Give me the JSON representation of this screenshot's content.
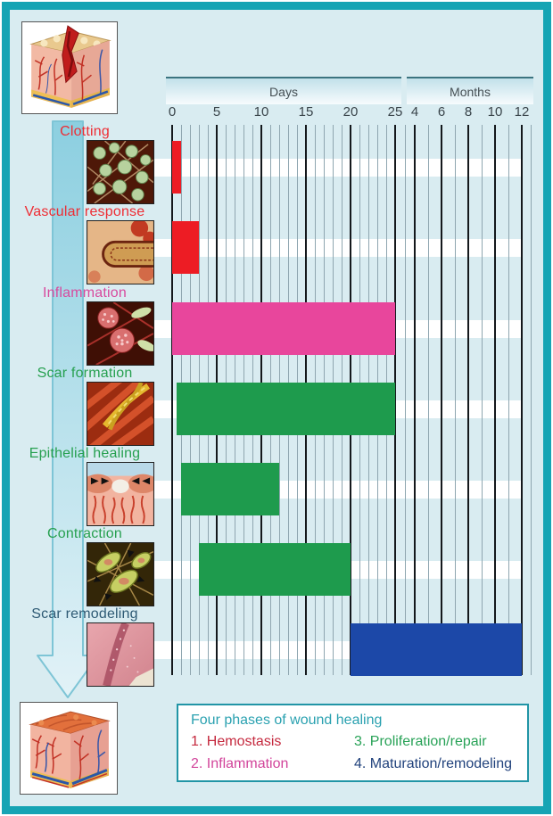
{
  "figure": {
    "background": "#d9ecf1",
    "frame_color": "#16a4b4",
    "stripe_color": "#ffffff",
    "grid_major_color": "#14181c",
    "grid_minor_color": "#8fa6b0"
  },
  "axis": {
    "days_label": "Days",
    "months_label": "Months",
    "day_ticks": [
      0,
      5,
      10,
      15,
      20,
      25
    ],
    "month_ticks": [
      4,
      6,
      8,
      10,
      12
    ]
  },
  "rows": [
    {
      "label": "Clotting",
      "color": "#ee2d34"
    },
    {
      "label": "Vascular response",
      "color": "#ee2d34"
    },
    {
      "label": "Inflammation",
      "color": "#d84a9e"
    },
    {
      "label": "Scar formation",
      "color": "#27a050"
    },
    {
      "label": "Epithelial healing",
      "color": "#27a050"
    },
    {
      "label": "Contraction",
      "color": "#27a050"
    },
    {
      "label": "Scar remodeling",
      "color": "#2e5a74"
    }
  ],
  "legend": {
    "title": "Four phases of wound healing",
    "title_color": "#2aa1b0",
    "items": [
      {
        "label": "1. Hemostasis",
        "color": "#c5293e"
      },
      {
        "label": "2. Inflammation",
        "color": "#d2459b"
      },
      {
        "label": "3. Proliferation/repair",
        "color": "#28a257"
      },
      {
        "label": "4. Maturation/remodeling",
        "color": "#21427c"
      }
    ]
  },
  "illustrations": {
    "top_left": "wounded skin cross-section with clot",
    "bottom_left": "healed skin cross-section",
    "row_thumbnails": [
      "platelets in fibrin mesh",
      "blood vessel response",
      "inflammatory cells",
      "collagen scar fibers",
      "epithelial cells migrating over wound",
      "myofibroblasts contracting",
      "remodeled scar photo"
    ]
  },
  "chart_data": {
    "type": "bar",
    "subtype": "gantt-timeline",
    "title": "Four phases of wound healing",
    "x_axis": {
      "sections": [
        {
          "label": "Days",
          "ticks": [
            0,
            5,
            10,
            15,
            20,
            25
          ],
          "unit": "days"
        },
        {
          "label": "Months",
          "ticks": [
            4,
            6,
            8,
            10,
            12
          ],
          "unit": "months"
        }
      ]
    },
    "series": [
      {
        "name": "Clotting",
        "phase": 1,
        "phase_name": "Hemostasis",
        "color": "#ed1c24",
        "start_days": 0,
        "end_days": 1
      },
      {
        "name": "Vascular response",
        "phase": 1,
        "phase_name": "Hemostasis",
        "color": "#ed1c24",
        "start_days": 0,
        "end_days": 3
      },
      {
        "name": "Inflammation",
        "phase": 2,
        "phase_name": "Inflammation",
        "color": "#e8469c",
        "start_days": 0,
        "end_days": 25
      },
      {
        "name": "Scar formation",
        "phase": 3,
        "phase_name": "Proliferation/repair",
        "color": "#1e9b4d",
        "start_days": 0.5,
        "end_days": 25
      },
      {
        "name": "Epithelial healing",
        "phase": 3,
        "phase_name": "Proliferation/repair",
        "color": "#1e9b4d",
        "start_days": 1,
        "end_days": 12
      },
      {
        "name": "Contraction",
        "phase": 3,
        "phase_name": "Proliferation/repair",
        "color": "#1e9b4d",
        "start_days": 3,
        "end_days": 20
      },
      {
        "name": "Scar remodeling",
        "phase": 4,
        "phase_name": "Maturation/remodeling",
        "color": "#1c48a8",
        "start_days": 20,
        "end_months": 12
      }
    ]
  }
}
